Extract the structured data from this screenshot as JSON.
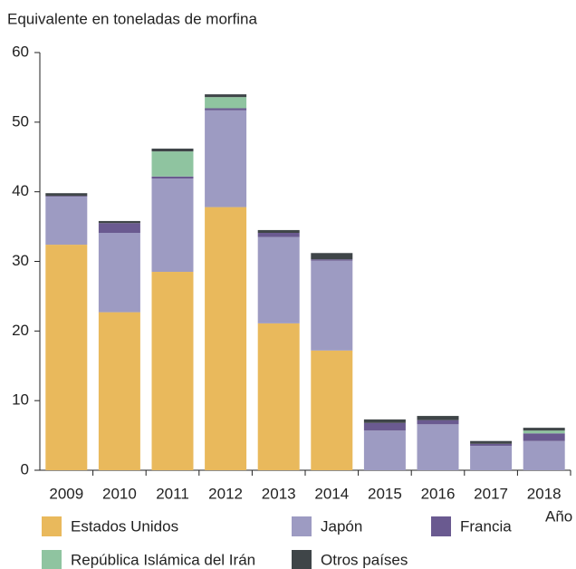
{
  "chart_data": {
    "type": "stacked_bar",
    "y_label": "Equivalente en toneladas de morfina",
    "x_label": "Año",
    "categories": [
      "2009",
      "2010",
      "2011",
      "2012",
      "2013",
      "2014",
      "2015",
      "2016",
      "2017",
      "2018"
    ],
    "series": [
      {
        "name": "Estados Unidos",
        "color": "#e9b95c",
        "values": [
          32.4,
          22.7,
          28.5,
          37.8,
          21.1,
          17.2,
          0,
          0,
          0,
          0
        ]
      },
      {
        "name": "Japón",
        "color": "#9d9bc2",
        "values": [
          6.9,
          11.4,
          13.4,
          13.9,
          12.4,
          12.9,
          5.7,
          6.6,
          3.5,
          4.2
        ]
      },
      {
        "name": "Francia",
        "color": "#6a5a90",
        "values": [
          0.1,
          1.4,
          0.3,
          0.3,
          0.6,
          0.2,
          1.1,
          0.6,
          0.3,
          1.1
        ]
      },
      {
        "name": "República Islámica del Irán",
        "color": "#8fc4a0",
        "values": [
          0,
          0,
          3.6,
          1.6,
          0,
          0,
          0,
          0,
          0,
          0.4
        ]
      },
      {
        "name": "Otros países",
        "color": "#3f4548",
        "values": [
          0.4,
          0.3,
          0.4,
          0.4,
          0.4,
          0.9,
          0.5,
          0.6,
          0.4,
          0.4
        ]
      }
    ],
    "ylim": [
      0,
      60
    ],
    "yticks": [
      0,
      10,
      20,
      30,
      40,
      50,
      60
    ]
  }
}
